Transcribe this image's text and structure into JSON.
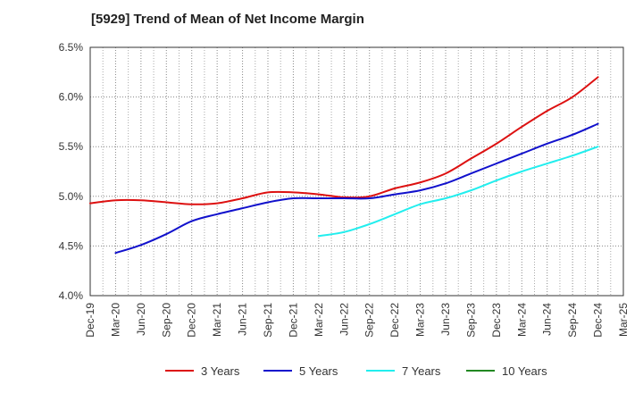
{
  "chart_data": {
    "type": "line",
    "title": "[5929]  Trend of Mean of Net Income Margin",
    "xlabel": "",
    "ylabel": "",
    "ylim": [
      4.0,
      6.5
    ],
    "yticks": [
      "4.0%",
      "4.5%",
      "5.0%",
      "5.5%",
      "6.0%",
      "6.5%"
    ],
    "categories": [
      "Dec-19",
      "Mar-20",
      "Jun-20",
      "Sep-20",
      "Dec-20",
      "Mar-21",
      "Jun-21",
      "Sep-21",
      "Dec-21",
      "Mar-22",
      "Jun-22",
      "Sep-22",
      "Dec-22",
      "Mar-23",
      "Jun-23",
      "Sep-23",
      "Dec-23",
      "Mar-24",
      "Jun-24",
      "Sep-24",
      "Dec-24",
      "Mar-25"
    ],
    "grid": true,
    "legend_position": "bottom",
    "series": [
      {
        "name": "3 Years",
        "color": "#dd1111",
        "values": [
          4.93,
          4.96,
          4.96,
          4.94,
          4.92,
          4.93,
          4.98,
          5.04,
          5.04,
          5.02,
          4.99,
          5.0,
          5.08,
          5.14,
          5.23,
          5.38,
          5.53,
          5.7,
          5.86,
          6.0,
          6.2,
          null
        ]
      },
      {
        "name": "5 Years",
        "color": "#1111cc",
        "values": [
          null,
          4.43,
          4.51,
          4.62,
          4.75,
          4.82,
          4.88,
          4.94,
          4.98,
          4.98,
          4.98,
          4.98,
          5.02,
          5.06,
          5.13,
          5.23,
          5.33,
          5.43,
          5.53,
          5.62,
          5.73,
          null
        ]
      },
      {
        "name": "7 Years",
        "color": "#22eeee",
        "values": [
          null,
          null,
          null,
          null,
          null,
          null,
          null,
          null,
          null,
          4.6,
          4.64,
          4.72,
          4.82,
          4.92,
          4.98,
          5.06,
          5.16,
          5.25,
          5.33,
          5.41,
          5.5,
          null
        ]
      },
      {
        "name": "10 Years",
        "color": "#228822",
        "values": [
          null,
          null,
          null,
          null,
          null,
          null,
          null,
          null,
          null,
          null,
          null,
          null,
          null,
          null,
          null,
          null,
          null,
          null,
          null,
          null,
          null,
          null
        ]
      }
    ]
  }
}
